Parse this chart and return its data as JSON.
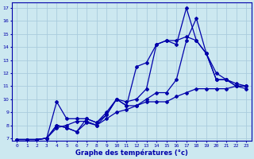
{
  "xlabel": "Graphe des températures (°c)",
  "background_color": "#cce8f0",
  "grid_color": "#aaccdd",
  "line_color": "#0000aa",
  "xlim": [
    -0.5,
    23.5
  ],
  "ylim": [
    6.8,
    17.4
  ],
  "xticks": [
    0,
    1,
    2,
    3,
    4,
    5,
    6,
    7,
    8,
    9,
    10,
    11,
    12,
    13,
    14,
    15,
    16,
    17,
    18,
    19,
    20,
    21,
    22,
    23
  ],
  "yticks": [
    7,
    8,
    9,
    10,
    11,
    12,
    13,
    14,
    15,
    16,
    17
  ],
  "series": [
    {
      "x": [
        0,
        1,
        2,
        3,
        4,
        5,
        6,
        7,
        8,
        9,
        10,
        11,
        12,
        13,
        14,
        15,
        16,
        17,
        18,
        19,
        20,
        21,
        22,
        23
      ],
      "y": [
        6.9,
        6.9,
        6.9,
        7.0,
        7.8,
        8.0,
        8.3,
        8.3,
        8.0,
        8.5,
        9.0,
        9.2,
        9.5,
        9.8,
        9.8,
        9.8,
        10.2,
        10.5,
        10.8,
        10.8,
        10.8,
        10.8,
        11.0,
        10.8
      ]
    },
    {
      "x": [
        0,
        1,
        2,
        3,
        4,
        5,
        6,
        7,
        8,
        9,
        10,
        11,
        12,
        13,
        14,
        15,
        16,
        17,
        18,
        19,
        20,
        21,
        22,
        23
      ],
      "y": [
        6.9,
        6.9,
        6.9,
        7.0,
        8.0,
        7.8,
        7.5,
        8.2,
        8.0,
        8.8,
        10.0,
        9.5,
        12.5,
        12.8,
        14.2,
        14.5,
        14.2,
        17.0,
        14.5,
        13.5,
        11.5,
        11.5,
        11.0,
        11.0
      ]
    },
    {
      "x": [
        0,
        1,
        2,
        3,
        4,
        5,
        6,
        7,
        8,
        9,
        10,
        11,
        12,
        13,
        14,
        15,
        16,
        17,
        18,
        19,
        20,
        21,
        22,
        23
      ],
      "y": [
        6.9,
        6.9,
        6.9,
        7.0,
        8.0,
        7.8,
        7.5,
        8.5,
        8.2,
        9.0,
        10.0,
        9.5,
        9.5,
        10.0,
        10.5,
        10.5,
        11.5,
        14.5,
        16.2,
        13.5,
        12.0,
        11.5,
        11.0,
        11.0
      ]
    },
    {
      "x": [
        0,
        1,
        2,
        3,
        4,
        5,
        6,
        7,
        8,
        9,
        10,
        11,
        12,
        13,
        14,
        15,
        16,
        17,
        18,
        19,
        20,
        21,
        22,
        23
      ],
      "y": [
        6.9,
        6.9,
        6.9,
        7.0,
        9.8,
        8.5,
        8.5,
        8.5,
        8.2,
        8.8,
        10.0,
        9.8,
        10.0,
        10.8,
        14.2,
        14.5,
        14.5,
        14.8,
        14.5,
        13.5,
        11.5,
        11.5,
        11.2,
        11.0
      ]
    }
  ]
}
